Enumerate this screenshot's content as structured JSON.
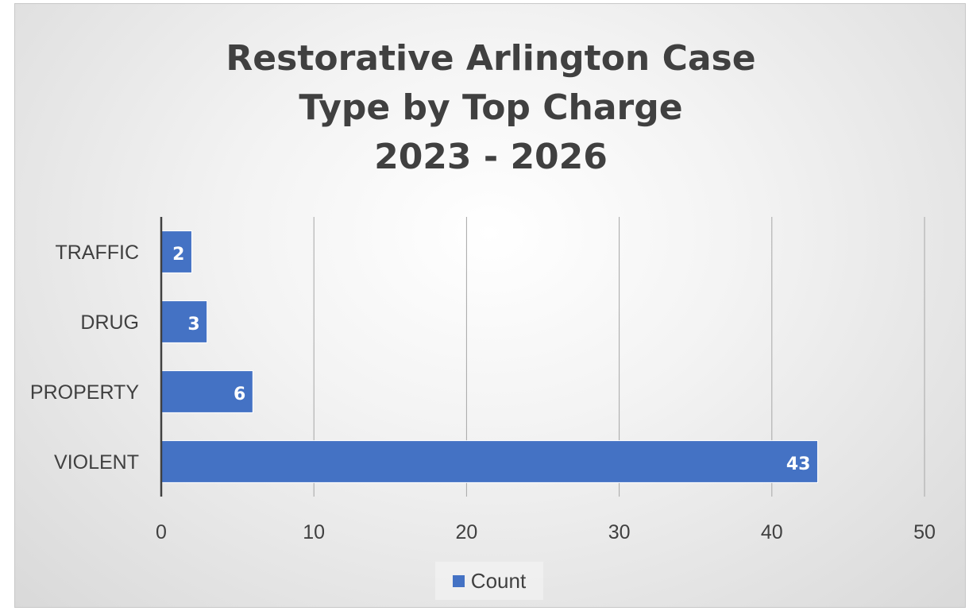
{
  "chart_data": {
    "type": "bar",
    "orientation": "horizontal",
    "title_lines": [
      "Restorative Arlington Case",
      "Type by Top Charge",
      "2023 - 2026"
    ],
    "categories": [
      "TRAFFIC",
      "DRUG",
      "PROPERTY",
      "VIOLENT"
    ],
    "series": [
      {
        "name": "Count",
        "values": [
          2,
          3,
          6,
          43
        ]
      }
    ],
    "xlim": [
      0,
      50
    ],
    "x_ticks": [
      0,
      10,
      20,
      30,
      40,
      50
    ],
    "data_labels": true,
    "grid": "vertical",
    "legend_position": "bottom",
    "colors": {
      "bar": "#4472c4",
      "bar_outline": "#ffffff",
      "text": "#404040",
      "grid": "#a6a6a6",
      "axis": "#404040"
    }
  }
}
